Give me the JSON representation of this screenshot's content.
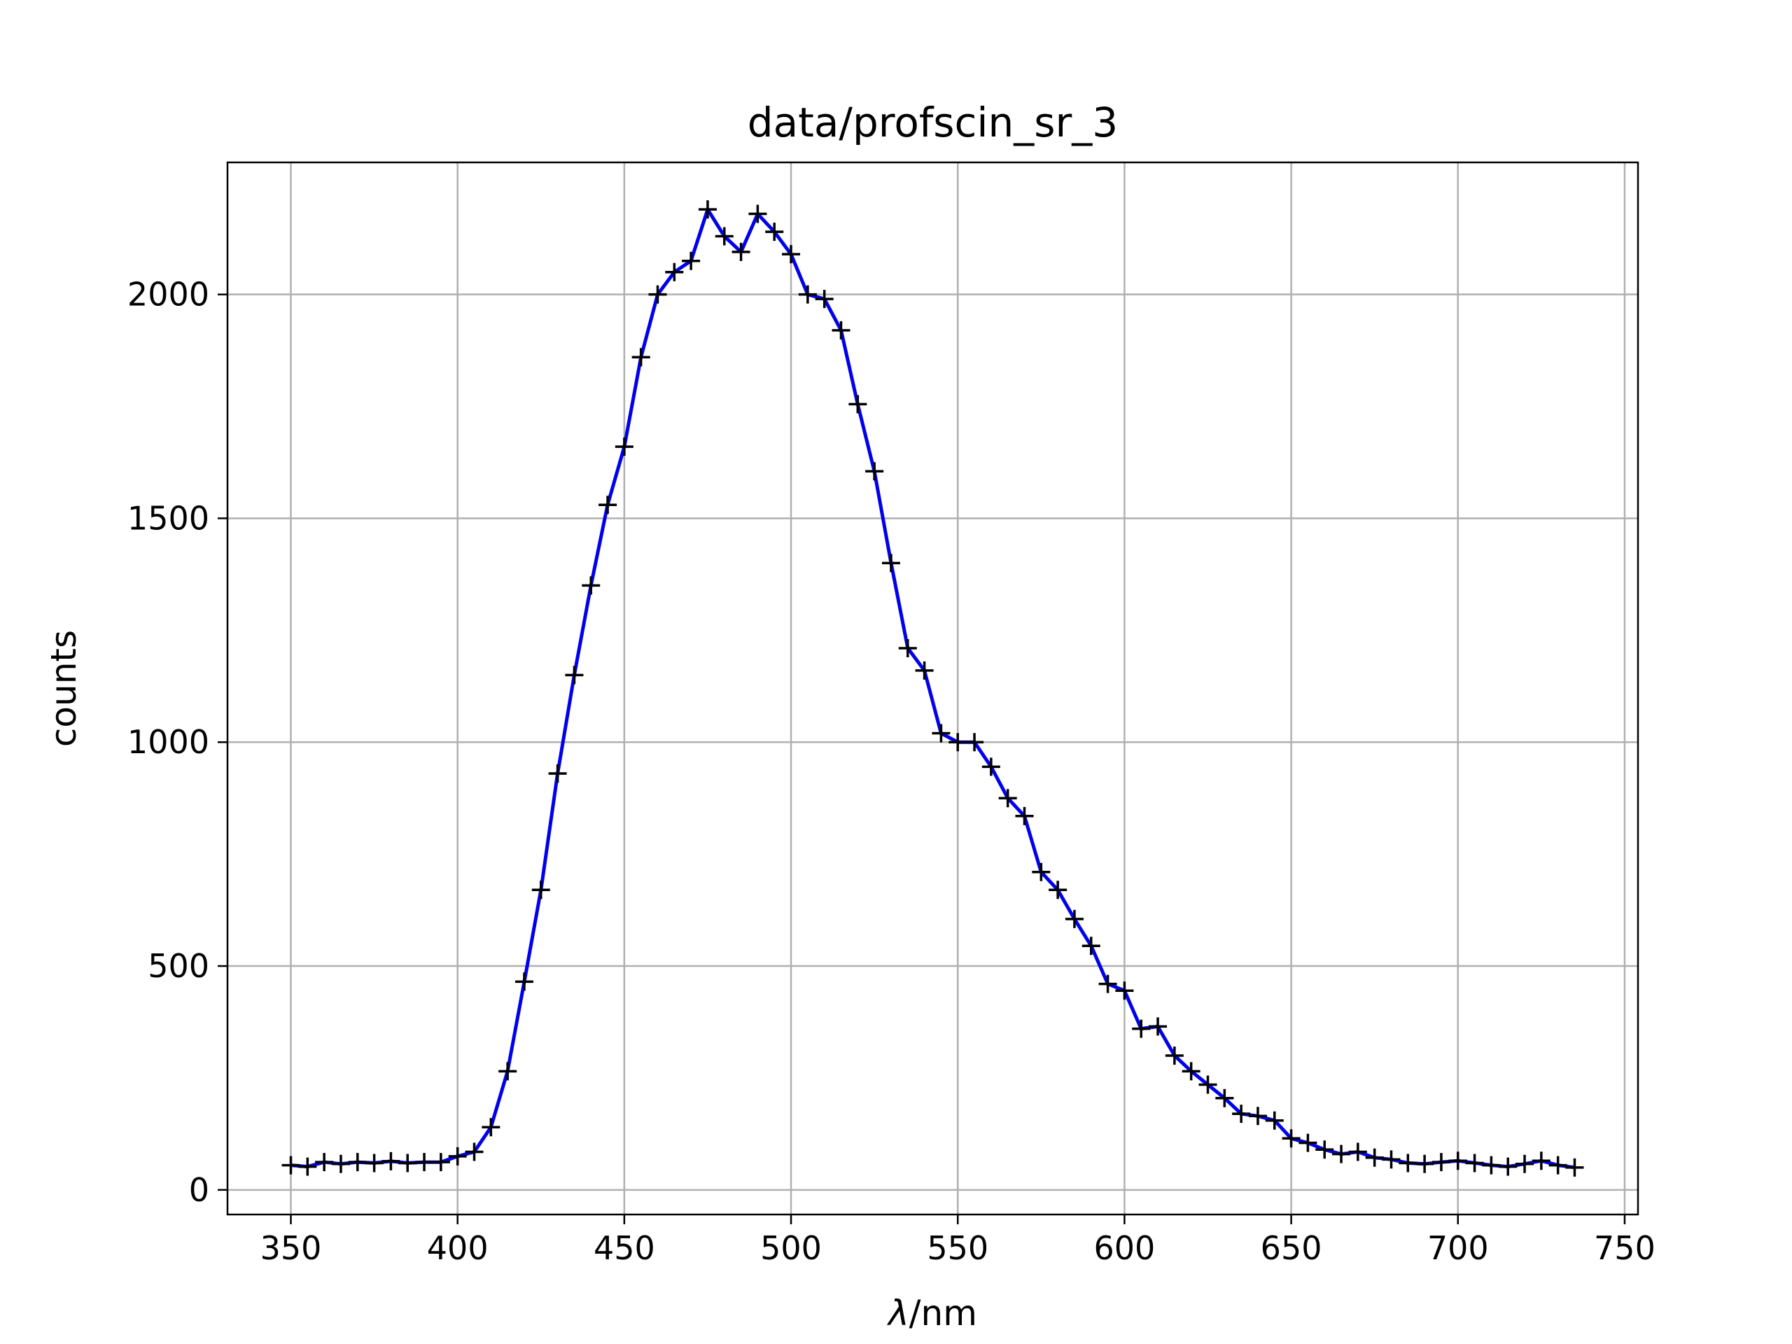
{
  "chart_data": {
    "type": "line",
    "title": "data/profscin_sr_3",
    "xlabel_symbol": "λ",
    "xlabel_unit": "/nm",
    "ylabel": "counts",
    "xlim": [
      331,
      754
    ],
    "ylim": [
      -55,
      2295
    ],
    "xticks": [
      350,
      400,
      450,
      500,
      550,
      600,
      650,
      700,
      750
    ],
    "yticks": [
      0,
      500,
      1000,
      1500,
      2000
    ],
    "grid": true,
    "series": [
      {
        "line_color": "#0000ee",
        "marker": "+",
        "marker_color": "#000000",
        "x": [
          350,
          355,
          360,
          365,
          370,
          375,
          380,
          385,
          390,
          395,
          400,
          405,
          410,
          415,
          420,
          425,
          430,
          435,
          440,
          445,
          450,
          455,
          460,
          465,
          470,
          475,
          480,
          485,
          490,
          495,
          500,
          505,
          510,
          515,
          520,
          525,
          530,
          535,
          540,
          545,
          550,
          555,
          560,
          565,
          570,
          575,
          580,
          585,
          590,
          595,
          600,
          605,
          610,
          615,
          620,
          625,
          630,
          635,
          640,
          645,
          650,
          655,
          660,
          665,
          670,
          675,
          680,
          685,
          690,
          695,
          700,
          705,
          710,
          715,
          720,
          725,
          730,
          735
        ],
        "y": [
          55,
          52,
          62,
          58,
          62,
          60,
          64,
          60,
          62,
          62,
          75,
          85,
          140,
          265,
          465,
          670,
          930,
          1150,
          1350,
          1530,
          1660,
          1860,
          2000,
          2050,
          2075,
          2190,
          2130,
          2095,
          2180,
          2140,
          2090,
          2000,
          1990,
          1920,
          1755,
          1605,
          1400,
          1210,
          1160,
          1020,
          1000,
          1000,
          945,
          875,
          835,
          710,
          670,
          605,
          545,
          460,
          445,
          360,
          365,
          300,
          265,
          235,
          205,
          170,
          165,
          155,
          115,
          105,
          90,
          80,
          85,
          72,
          68,
          60,
          58,
          62,
          65,
          60,
          55,
          52,
          58,
          65,
          55,
          50
        ]
      }
    ]
  }
}
